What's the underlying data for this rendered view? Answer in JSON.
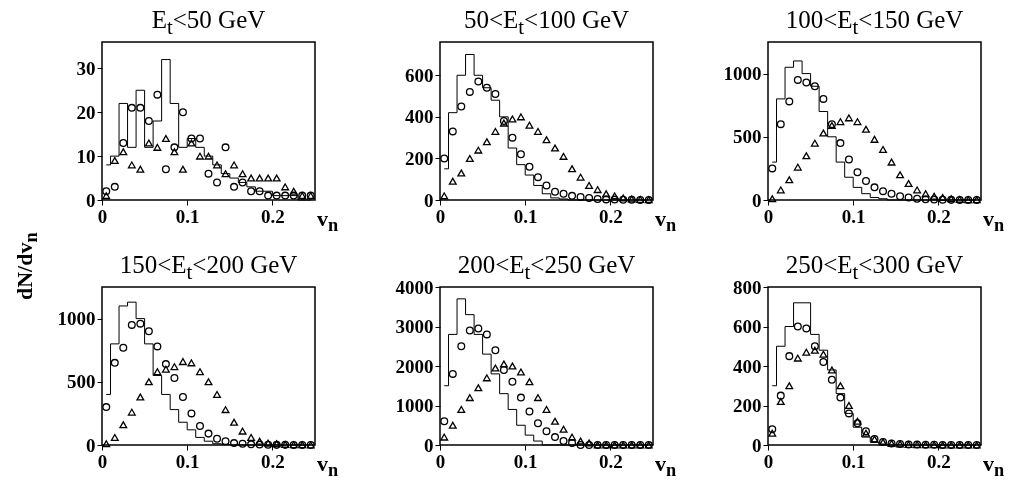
{
  "chart_data": [
    {
      "type": "scatter",
      "title": "E$_{t}$<50 GeV",
      "xlabel": "v$_{n}$",
      "x": [
        0.005,
        0.015,
        0.025,
        0.035,
        0.045,
        0.055,
        0.065,
        0.075,
        0.085,
        0.095,
        0.105,
        0.115,
        0.125,
        0.135,
        0.145,
        0.155,
        0.165,
        0.175,
        0.185,
        0.195,
        0.205,
        0.215,
        0.225,
        0.235,
        0.245
      ],
      "xlim": [
        0,
        0.25
      ],
      "xticks": [
        0,
        0.1,
        0.2
      ],
      "ylim": [
        0,
        36
      ],
      "yticks": [
        0,
        10,
        20,
        30
      ],
      "series": [
        {
          "type": "step",
          "color": "#000000",
          "values": [
            8,
            10,
            22,
            12,
            25,
            12,
            18,
            32,
            22,
            12,
            14,
            12,
            10,
            8,
            6,
            5,
            4,
            3,
            2,
            2,
            1,
            1,
            1,
            0,
            0
          ]
        },
        {
          "type": "scatter",
          "marker": "circle",
          "color": "#000000",
          "values": [
            2,
            3,
            13,
            21,
            21,
            18,
            24,
            7,
            12,
            20,
            14,
            14,
            6,
            4,
            12,
            3,
            4,
            2,
            2,
            1,
            1,
            1,
            1,
            1,
            1
          ]
        },
        {
          "type": "scatter",
          "marker": "triangle",
          "color": "#000000",
          "values": [
            1,
            9,
            11,
            8,
            7,
            13,
            12,
            14,
            11,
            7,
            13,
            10,
            10,
            8,
            6,
            8,
            6,
            5,
            5,
            5,
            5,
            3,
            2,
            1,
            1
          ]
        }
      ]
    },
    {
      "type": "scatter",
      "title": "50<E$_{t}$<100 GeV",
      "xlabel": "v$_{n}$",
      "x": [
        0.005,
        0.015,
        0.025,
        0.035,
        0.045,
        0.055,
        0.065,
        0.075,
        0.085,
        0.095,
        0.105,
        0.115,
        0.125,
        0.135,
        0.145,
        0.155,
        0.165,
        0.175,
        0.185,
        0.195,
        0.205,
        0.215,
        0.225,
        0.235,
        0.245
      ],
      "xlim": [
        0,
        0.25
      ],
      "xticks": [
        0,
        0.1,
        0.2
      ],
      "ylim": [
        0,
        760
      ],
      "yticks": [
        0,
        200,
        400,
        600
      ],
      "series": [
        {
          "type": "step",
          "color": "#000000",
          "values": [
            150,
            420,
            600,
            700,
            600,
            540,
            480,
            400,
            250,
            170,
            120,
            70,
            30,
            10,
            5,
            0,
            0,
            0,
            0,
            0,
            0,
            0,
            0,
            0,
            0
          ]
        },
        {
          "type": "scatter",
          "marker": "circle",
          "color": "#000000",
          "values": [
            200,
            330,
            450,
            520,
            570,
            540,
            510,
            380,
            300,
            220,
            160,
            110,
            70,
            40,
            30,
            20,
            15,
            10,
            5,
            3,
            2,
            1,
            1,
            0,
            0
          ]
        },
        {
          "type": "scatter",
          "marker": "triangle",
          "color": "#000000",
          "values": [
            20,
            90,
            130,
            200,
            240,
            280,
            330,
            370,
            390,
            400,
            360,
            330,
            290,
            250,
            210,
            150,
            110,
            70,
            50,
            30,
            20,
            10,
            5,
            3,
            2
          ]
        }
      ]
    },
    {
      "type": "scatter",
      "title": "100<E$_{t}$<150 GeV",
      "xlabel": "v$_{n}$",
      "x": [
        0.005,
        0.015,
        0.025,
        0.035,
        0.045,
        0.055,
        0.065,
        0.075,
        0.085,
        0.095,
        0.105,
        0.115,
        0.125,
        0.135,
        0.145,
        0.155,
        0.165,
        0.175,
        0.185,
        0.195,
        0.205,
        0.215,
        0.225,
        0.235,
        0.245
      ],
      "xlim": [
        0,
        0.25
      ],
      "xticks": [
        0,
        0.1,
        0.2
      ],
      "ylim": [
        0,
        1250
      ],
      "yticks": [
        0,
        500,
        1000
      ],
      "series": [
        {
          "type": "step",
          "color": "#000000",
          "values": [
            300,
            800,
            1050,
            1100,
            1000,
            900,
            700,
            500,
            300,
            180,
            100,
            50,
            20,
            10,
            0,
            0,
            0,
            0,
            0,
            0,
            0,
            0,
            0,
            0,
            0
          ]
        },
        {
          "type": "scatter",
          "marker": "circle",
          "color": "#000000",
          "values": [
            250,
            600,
            780,
            950,
            930,
            900,
            800,
            600,
            450,
            320,
            220,
            150,
            100,
            70,
            50,
            30,
            20,
            10,
            5,
            3,
            2,
            1,
            0,
            0,
            0
          ]
        },
        {
          "type": "scatter",
          "marker": "triangle",
          "color": "#000000",
          "values": [
            10,
            80,
            160,
            260,
            350,
            450,
            530,
            590,
            620,
            650,
            620,
            560,
            480,
            400,
            300,
            200,
            130,
            80,
            50,
            30,
            20,
            10,
            5,
            3,
            2
          ]
        }
      ]
    },
    {
      "type": "scatter",
      "title": "150<E$_{t}$<200 GeV",
      "xlabel": "v$_{n}$",
      "ylabel": "dN/dv$_{n}$",
      "x": [
        0.005,
        0.015,
        0.025,
        0.035,
        0.045,
        0.055,
        0.065,
        0.075,
        0.085,
        0.095,
        0.105,
        0.115,
        0.125,
        0.135,
        0.145,
        0.155,
        0.165,
        0.175,
        0.185,
        0.195,
        0.205,
        0.215,
        0.225,
        0.235,
        0.245
      ],
      "xlim": [
        0,
        0.25
      ],
      "xticks": [
        0,
        0.1,
        0.2
      ],
      "ylim": [
        0,
        1250
      ],
      "yticks": [
        0,
        500,
        1000
      ],
      "series": [
        {
          "type": "step",
          "color": "#000000",
          "values": [
            400,
            800,
            1100,
            1130,
            1000,
            800,
            550,
            400,
            280,
            180,
            120,
            60,
            30,
            10,
            5,
            0,
            0,
            0,
            0,
            0,
            0,
            0,
            0,
            0,
            0
          ]
        },
        {
          "type": "scatter",
          "marker": "circle",
          "color": "#000000",
          "values": [
            300,
            650,
            770,
            950,
            960,
            900,
            780,
            640,
            530,
            380,
            250,
            150,
            90,
            50,
            30,
            15,
            10,
            5,
            3,
            2,
            1,
            1,
            0,
            0,
            0
          ]
        },
        {
          "type": "scatter",
          "marker": "triangle",
          "color": "#000000",
          "values": [
            10,
            60,
            160,
            260,
            380,
            500,
            580,
            600,
            620,
            660,
            650,
            580,
            500,
            400,
            280,
            180,
            110,
            60,
            30,
            15,
            10,
            5,
            3,
            2,
            1
          ]
        }
      ]
    },
    {
      "type": "scatter",
      "title": "200<E$_{t}$<250 GeV",
      "xlabel": "v$_{n}$",
      "x": [
        0.005,
        0.015,
        0.025,
        0.035,
        0.045,
        0.055,
        0.065,
        0.075,
        0.085,
        0.095,
        0.105,
        0.115,
        0.125,
        0.135,
        0.145,
        0.155,
        0.165,
        0.175,
        0.185,
        0.195,
        0.205,
        0.215,
        0.225,
        0.235,
        0.245
      ],
      "xlim": [
        0,
        0.25
      ],
      "xticks": [
        0,
        0.1,
        0.2
      ],
      "ylim": [
        0,
        4000
      ],
      "yticks": [
        0,
        1000,
        2000,
        3000,
        4000
      ],
      "series": [
        {
          "type": "step",
          "color": "#000000",
          "values": [
            1500,
            2800,
            3700,
            3300,
            2800,
            2300,
            1800,
            1300,
            900,
            500,
            250,
            100,
            0,
            0,
            0,
            0,
            0,
            0,
            0,
            0,
            0,
            0,
            0,
            0,
            0
          ]
        },
        {
          "type": "scatter",
          "marker": "circle",
          "color": "#000000",
          "values": [
            600,
            1800,
            2500,
            2900,
            2950,
            2800,
            2400,
            1900,
            1600,
            1200,
            850,
            550,
            350,
            200,
            100,
            50,
            0,
            0,
            0,
            0,
            0,
            0,
            0,
            0,
            0
          ]
        },
        {
          "type": "scatter",
          "marker": "triangle",
          "color": "#000000",
          "values": [
            200,
            500,
            900,
            1200,
            1450,
            1700,
            1950,
            2050,
            2000,
            1850,
            1600,
            1200,
            900,
            600,
            400,
            200,
            100,
            50,
            0,
            0,
            0,
            0,
            0,
            0,
            0
          ]
        }
      ]
    },
    {
      "type": "scatter",
      "title": "250<E$_{t}$<300 GeV",
      "xlabel": "v$_{n}$",
      "x": [
        0.005,
        0.015,
        0.025,
        0.035,
        0.045,
        0.055,
        0.065,
        0.075,
        0.085,
        0.095,
        0.105,
        0.115,
        0.125,
        0.135,
        0.145,
        0.155,
        0.165,
        0.175,
        0.185,
        0.195,
        0.205,
        0.215,
        0.225,
        0.235,
        0.245
      ],
      "xlim": [
        0,
        0.25
      ],
      "xticks": [
        0,
        0.1,
        0.2
      ],
      "ylim": [
        0,
        800
      ],
      "yticks": [
        0,
        200,
        400,
        600,
        800
      ],
      "series": [
        {
          "type": "step",
          "color": "#000000",
          "values": [
            300,
            500,
            600,
            720,
            720,
            560,
            480,
            380,
            260,
            160,
            90,
            40,
            15,
            5,
            0,
            0,
            0,
            0,
            0,
            0,
            0,
            0,
            0,
            0,
            0
          ]
        },
        {
          "type": "scatter",
          "marker": "circle",
          "color": "#000000",
          "values": [
            80,
            250,
            450,
            600,
            590,
            500,
            420,
            330,
            240,
            160,
            110,
            70,
            30,
            15,
            8,
            5,
            3,
            2,
            1,
            1,
            0,
            0,
            0,
            0,
            0
          ]
        },
        {
          "type": "scatter",
          "marker": "triangle",
          "color": "#000000",
          "values": [
            60,
            220,
            300,
            440,
            470,
            480,
            460,
            380,
            300,
            200,
            120,
            60,
            30,
            15,
            8,
            5,
            3,
            2,
            1,
            1,
            0,
            0,
            0,
            0,
            0
          ]
        }
      ]
    }
  ]
}
